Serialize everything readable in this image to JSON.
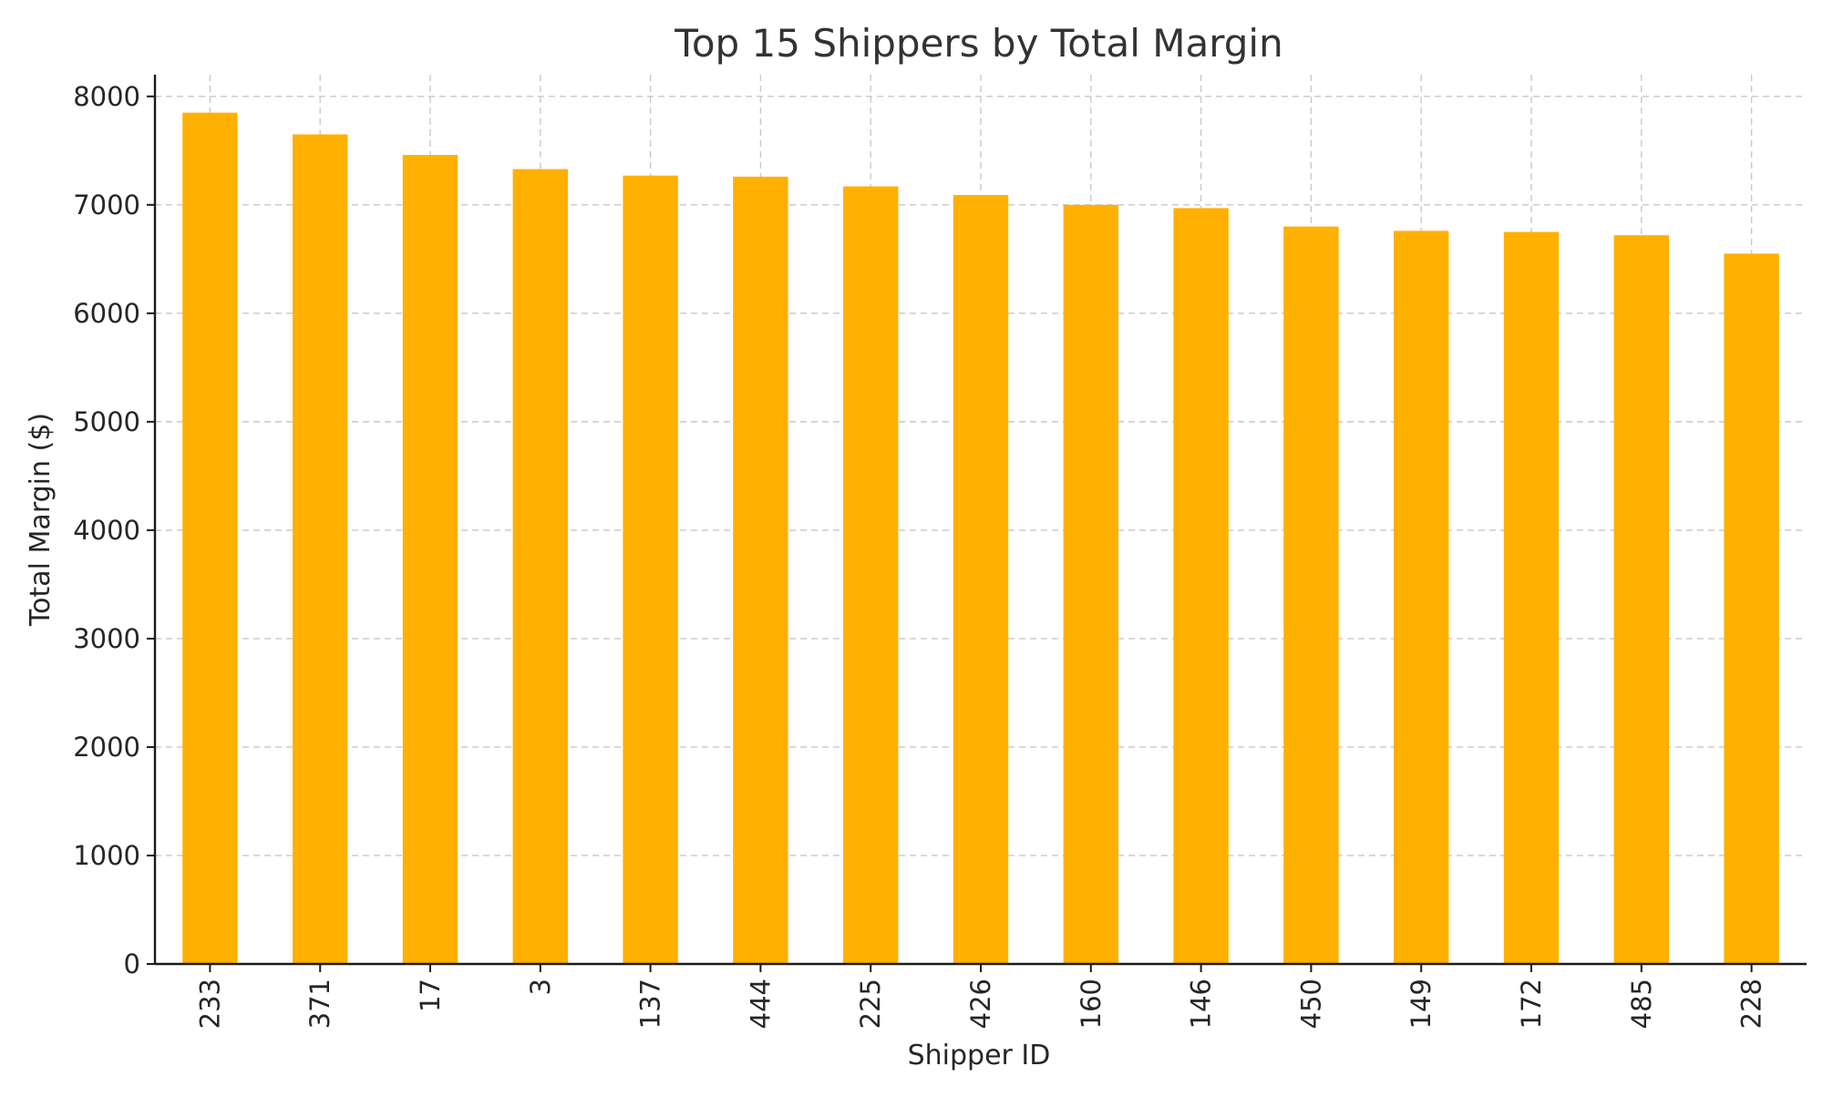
{
  "chart_data": {
    "type": "bar",
    "title": "Top 15 Shippers by Total Margin",
    "xlabel": "Shipper ID",
    "ylabel": "Total Margin ($)",
    "categories": [
      "233",
      "371",
      "17",
      "3",
      "137",
      "444",
      "225",
      "426",
      "160",
      "146",
      "450",
      "149",
      "172",
      "485",
      "228"
    ],
    "values": [
      7850,
      7650,
      7460,
      7330,
      7270,
      7260,
      7170,
      7090,
      7000,
      6970,
      6800,
      6760,
      6750,
      6720,
      6550
    ],
    "ylim": [
      0,
      8200
    ],
    "yticks": [
      0,
      1000,
      2000,
      3000,
      4000,
      5000,
      6000,
      7000,
      8000
    ],
    "bar_color": "#ffb000",
    "grid": true,
    "grid_style": "dashed",
    "legend": false
  }
}
